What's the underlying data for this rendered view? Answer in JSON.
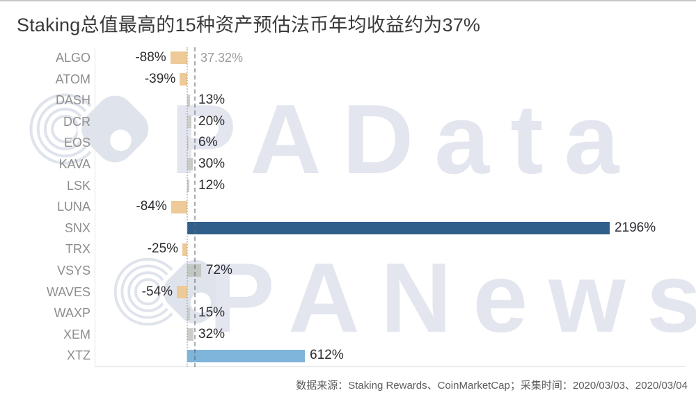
{
  "title": "Staking总值最高的15种资产预估法币年均收益约为37%",
  "footer": {
    "text": "数据来源：Staking Rewards、CoinMarketCap；采集时间：2020/03/03、2020/03/04"
  },
  "watermarks": {
    "first": "PAData",
    "second": "PANews",
    "color": "#e3e6ee"
  },
  "chart_data": {
    "type": "bar",
    "orientation": "horizontal",
    "title": "Staking总值最高的15种资产预估法币年均收益约为37%",
    "categories": [
      "ALGO",
      "ATOM",
      "DASH",
      "DCR",
      "EOS",
      "KAVA",
      "LSK",
      "LUNA",
      "SNX",
      "TRX",
      "VSYS",
      "WAVES",
      "WAXP",
      "XEM",
      "XTZ"
    ],
    "values": [
      -88,
      -39,
      13,
      20,
      6,
      30,
      12,
      -84,
      2196,
      -25,
      72,
      -54,
      15,
      32,
      612
    ],
    "value_labels": [
      "-88%",
      "-39%",
      "13%",
      "20%",
      "6%",
      "30%",
      "12%",
      "-84%",
      "2196%",
      "-25%",
      "72%",
      "-54%",
      "15%",
      "32%",
      "612%"
    ],
    "bar_colors": [
      "#edca97",
      "#edca97",
      "#cbcdc9",
      "#cbcdc9",
      "#cbcdc9",
      "#c9cbc7",
      "#cbcdc9",
      "#edca97",
      "#2f5f8a",
      "#edca97",
      "#c2c7c2",
      "#edca97",
      "#cbcdc9",
      "#cbcdc9",
      "#7fb4db"
    ],
    "average_line": {
      "value": 37.32,
      "label": "37.32%"
    },
    "unit": "%",
    "xlim": [
      -500,
      2500
    ],
    "grid": false,
    "legend": false
  }
}
